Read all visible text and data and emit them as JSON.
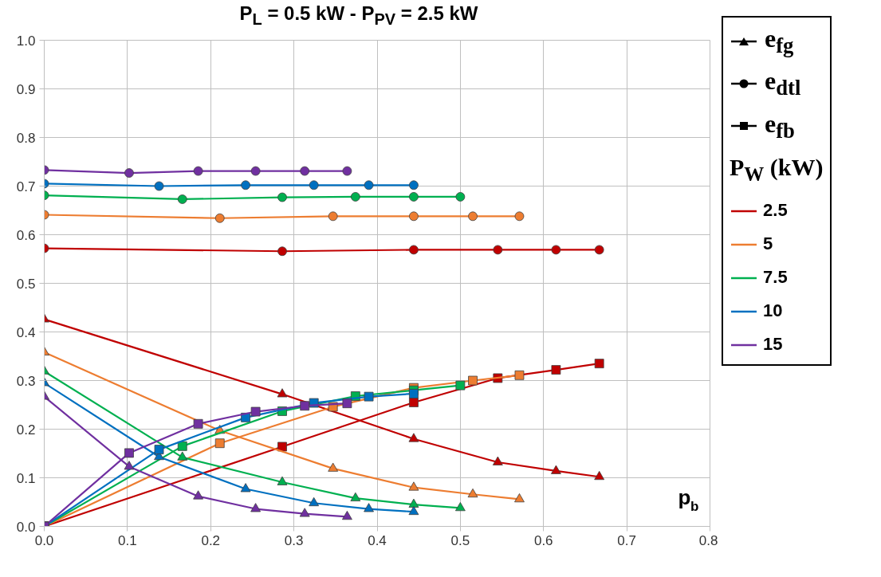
{
  "chart_data": {
    "type": "line",
    "title": "P$_{L}$ = 0.5 kW - P$_{PV}$ = 2.5 kW",
    "xlabel": "p$_{b}$",
    "legend_title": "P$_{W}$ (kW)",
    "legend": "right",
    "grid": true,
    "xlim": [
      0,
      0.8
    ],
    "ylim": [
      0,
      1.0
    ],
    "xticks": [
      {
        "value": 0,
        "label": "0.0"
      },
      0.1,
      0.2,
      0.3,
      0.4,
      0.5,
      0.6,
      0.7,
      0.8
    ],
    "yticks": [
      {
        "value": 0,
        "label": "0.0"
      },
      0.1,
      0.2,
      0.3,
      0.4,
      0.5,
      0.6,
      0.7,
      0.8,
      0.9,
      {
        "value": 1,
        "label": "1.0"
      }
    ],
    "annotations": [
      "e$_{fg}$",
      "e$_{dtl}$",
      "e$_{fb}$"
    ],
    "series": [
      {
        "name": "2.5",
        "color": "#c00000",
        "marker": "triangle",
        "x": [
          0,
          0.286,
          0.444,
          0.545,
          0.615,
          0.667
        ],
        "values": [
          0.426,
          0.272,
          0.18,
          0.132,
          0.114,
          0.102
        ]
      },
      {
        "color": "#c00000",
        "marker": "circle",
        "x": [
          0,
          0.286,
          0.444,
          0.545,
          0.615,
          0.667
        ],
        "values": [
          0.572,
          0.566,
          0.569,
          0.569,
          0.569,
          0.569
        ]
      },
      {
        "color": "#c00000",
        "marker": "square",
        "x": [
          0,
          0.286,
          0.444,
          0.545,
          0.615,
          0.667
        ],
        "values": [
          0,
          0.164,
          0.255,
          0.305,
          0.322,
          0.335
        ]
      },
      {
        "name": "5",
        "color": "#ed7d31",
        "marker": "triangle",
        "x": [
          0,
          0.211,
          0.347,
          0.444,
          0.515,
          0.571
        ],
        "values": [
          0.358,
          0.197,
          0.119,
          0.08,
          0.066,
          0.056
        ]
      },
      {
        "color": "#ed7d31",
        "marker": "circle",
        "x": [
          0,
          0.211,
          0.347,
          0.444,
          0.515,
          0.571
        ],
        "values": [
          0.641,
          0.634,
          0.638,
          0.638,
          0.638,
          0.638
        ]
      },
      {
        "color": "#ed7d31",
        "marker": "square",
        "x": [
          0,
          0.211,
          0.347,
          0.444,
          0.515,
          0.571
        ],
        "values": [
          0,
          0.171,
          0.246,
          0.285,
          0.3,
          0.311
        ]
      },
      {
        "name": "7.5",
        "color": "#00b050",
        "marker": "triangle",
        "x": [
          0,
          0.166,
          0.286,
          0.374,
          0.444,
          0.5
        ],
        "values": [
          0.319,
          0.142,
          0.091,
          0.058,
          0.045,
          0.038
        ]
      },
      {
        "color": "#00b050",
        "marker": "circle",
        "x": [
          0,
          0.166,
          0.286,
          0.374,
          0.444,
          0.5
        ],
        "values": [
          0.681,
          0.673,
          0.677,
          0.678,
          0.678,
          0.678
        ]
      },
      {
        "color": "#00b050",
        "marker": "square",
        "x": [
          0,
          0.166,
          0.286,
          0.374,
          0.444,
          0.5
        ],
        "values": [
          0,
          0.165,
          0.237,
          0.268,
          0.28,
          0.29
        ]
      },
      {
        "name": "10",
        "color": "#0070c0",
        "marker": "triangle",
        "x": [
          0,
          0.138,
          0.242,
          0.324,
          0.39,
          0.444
        ],
        "values": [
          0.295,
          0.143,
          0.077,
          0.048,
          0.036,
          0.03
        ]
      },
      {
        "color": "#0070c0",
        "marker": "circle",
        "x": [
          0,
          0.138,
          0.242,
          0.324,
          0.39,
          0.444
        ],
        "values": [
          0.705,
          0.7,
          0.702,
          0.702,
          0.702,
          0.702
        ]
      },
      {
        "color": "#0070c0",
        "marker": "square",
        "x": [
          0,
          0.138,
          0.242,
          0.324,
          0.39,
          0.444
        ],
        "values": [
          0,
          0.158,
          0.224,
          0.254,
          0.267,
          0.273
        ]
      },
      {
        "name": "15",
        "color": "#7030a0",
        "marker": "triangle",
        "x": [
          0,
          0.102,
          0.185,
          0.254,
          0.313,
          0.364
        ],
        "values": [
          0.267,
          0.123,
          0.062,
          0.036,
          0.026,
          0.02
        ]
      },
      {
        "color": "#7030a0",
        "marker": "circle",
        "x": [
          0,
          0.102,
          0.185,
          0.254,
          0.313,
          0.364
        ],
        "values": [
          0.733,
          0.727,
          0.731,
          0.731,
          0.731,
          0.731
        ]
      },
      {
        "color": "#7030a0",
        "marker": "square",
        "x": [
          0,
          0.102,
          0.185,
          0.254,
          0.313,
          0.364
        ],
        "values": [
          0,
          0.151,
          0.211,
          0.236,
          0.248,
          0.253
        ]
      }
    ]
  }
}
